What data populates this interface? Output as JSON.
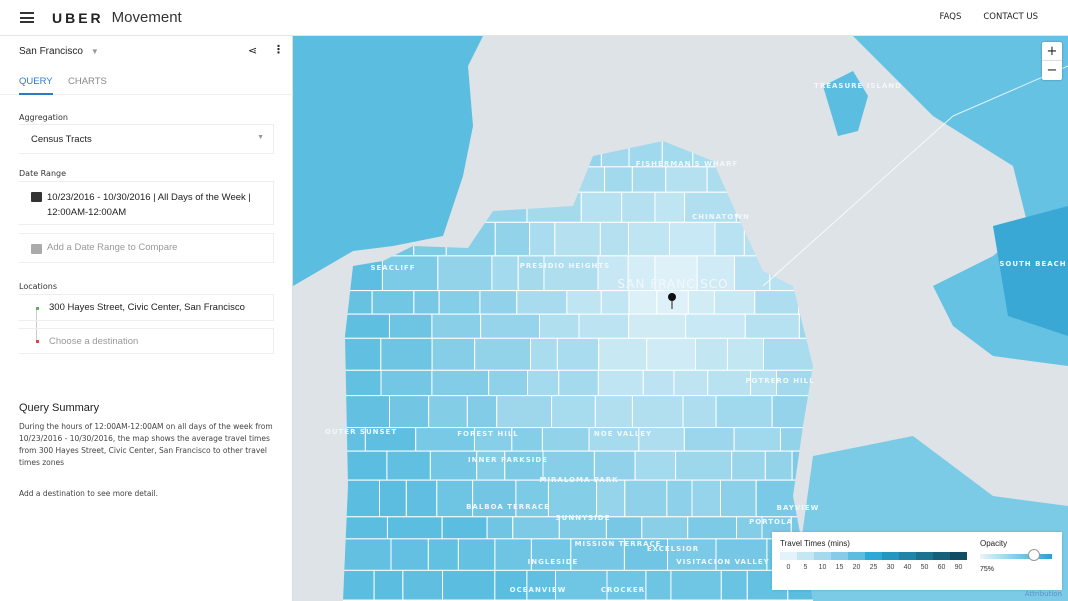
{
  "header": {
    "brand": "UBER",
    "product": "Movement",
    "nav": [
      "FAQS",
      "CONTACT US"
    ]
  },
  "sidebar": {
    "city": "San Francisco",
    "tabs": [
      {
        "label": "QUERY",
        "active": true
      },
      {
        "label": "CHARTS",
        "active": false
      }
    ],
    "aggregation": {
      "label": "Aggregation",
      "value": "Census Tracts"
    },
    "date_range": {
      "label": "Date Range",
      "value": "10/23/2016 - 10/30/2016 | All Days of the Week | 12:00AM-12:00AM",
      "compare": "Add a Date Range to Compare"
    },
    "locations": {
      "label": "Locations",
      "origin": "300 Hayes Street, Civic Center, San Francisco",
      "destination_placeholder": "Choose a destination"
    },
    "summary": {
      "title": "Query Summary",
      "text": "During the hours of 12:00AM-12:00AM on all days of the week from 10/23/2016 - 10/30/2016, the map shows the average travel times from 300 Hayes Street, Civic Center, San Francisco to other travel times zones",
      "hint": "Add a destination to see more detail."
    }
  },
  "map": {
    "labels": [
      "TREASURE ISLAND",
      "FISHERMAN'S WHARF",
      "CHINATOWN",
      "SEACLIFF",
      "PRESIDIO HEIGHTS",
      "SAN FRANCISCO",
      "SOUTH BEACH",
      "POTRERO HILL",
      "OUTER SUNSET",
      "FOREST HILL",
      "NOE VALLEY",
      "INNER PARKSIDE",
      "MIRALOMA PARK",
      "BALBOA TERRACE",
      "SUNNYSIDE",
      "BAYVIEW",
      "PORTOLA",
      "MISSION TERRACE",
      "EXCELSIOR",
      "INGLESIDE",
      "OCEANVIEW",
      "CROCKER",
      "VISITACION VALLEY"
    ],
    "zoom_in": "+",
    "zoom_out": "−",
    "attribution": "Attribution",
    "colors": {
      "water": "#dde3e6",
      "land": "#5bbde0",
      "low": "#dff1f8",
      "high": "#5bbde0"
    }
  },
  "legend": {
    "title": "Travel Times (mins)",
    "ticks": [
      "0",
      "5",
      "10",
      "15",
      "20",
      "25",
      "30",
      "40",
      "50",
      "60",
      "90"
    ],
    "colors": [
      "#e3f3f9",
      "#c5e6f3",
      "#a6d9ee",
      "#86cce8",
      "#5cbde1",
      "#2ea9d6",
      "#2596be",
      "#1f84a8",
      "#1a7290",
      "#155f79",
      "#104c62"
    ],
    "opacity_label": "Opacity",
    "opacity_value": "75%",
    "opacity": 0.75
  }
}
